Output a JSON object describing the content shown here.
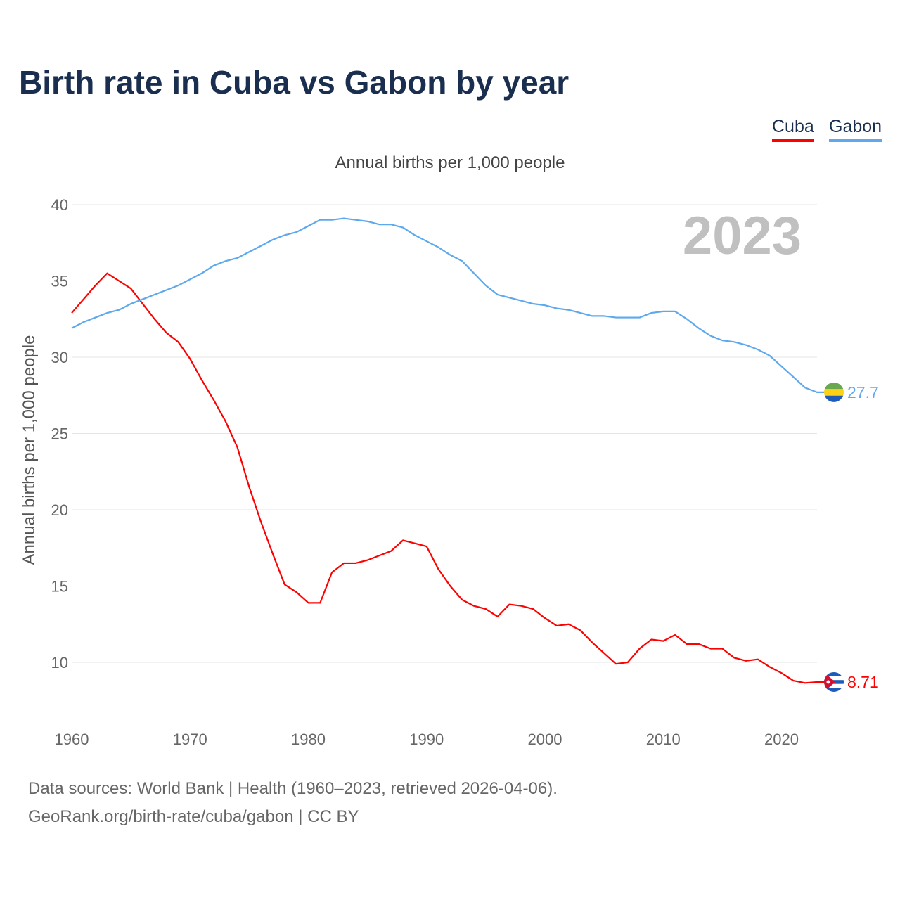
{
  "chart_data": {
    "type": "line",
    "title": "Birth rate in Cuba vs Gabon by year",
    "subtitle": "Annual births per 1,000 people",
    "ylabel": "Annual births per 1,000 people",
    "xlabel": "",
    "year_label": "2023",
    "xlim": [
      1960,
      2023
    ],
    "ylim": [
      7,
      40
    ],
    "yticks": [
      10,
      15,
      20,
      25,
      30,
      35,
      40
    ],
    "xticks": [
      1960,
      1970,
      1980,
      1990,
      2000,
      2010,
      2020
    ],
    "grid": true,
    "legend_position": "top-right",
    "x": [
      1960,
      1961,
      1962,
      1963,
      1964,
      1965,
      1966,
      1967,
      1968,
      1969,
      1970,
      1971,
      1972,
      1973,
      1974,
      1975,
      1976,
      1977,
      1978,
      1979,
      1980,
      1981,
      1982,
      1983,
      1984,
      1985,
      1986,
      1987,
      1988,
      1989,
      1990,
      1991,
      1992,
      1993,
      1994,
      1995,
      1996,
      1997,
      1998,
      1999,
      2000,
      2001,
      2002,
      2003,
      2004,
      2005,
      2006,
      2007,
      2008,
      2009,
      2010,
      2011,
      2012,
      2013,
      2014,
      2015,
      2016,
      2017,
      2018,
      2019,
      2020,
      2021,
      2022,
      2023
    ],
    "series": [
      {
        "name": "Cuba",
        "color": "#ff0000",
        "end_label": "8.71",
        "values": [
          32.9,
          33.8,
          34.7,
          35.5,
          35.0,
          34.5,
          33.5,
          32.5,
          31.6,
          31.0,
          29.9,
          28.5,
          27.2,
          25.8,
          24.1,
          21.5,
          19.2,
          17.1,
          15.1,
          14.6,
          13.9,
          13.9,
          15.9,
          16.5,
          16.5,
          16.7,
          17.0,
          17.3,
          18.0,
          17.8,
          17.6,
          16.1,
          15.0,
          14.1,
          13.7,
          13.5,
          13.0,
          13.8,
          13.7,
          13.5,
          12.9,
          12.4,
          12.5,
          12.1,
          11.3,
          10.6,
          9.9,
          10.0,
          10.9,
          11.5,
          11.4,
          11.8,
          11.2,
          11.2,
          10.9,
          10.9,
          10.3,
          10.1,
          10.2,
          9.7,
          9.3,
          8.8,
          8.65,
          8.71
        ]
      },
      {
        "name": "Gabon",
        "color": "#5ea8ee",
        "end_label": "27.7",
        "values": [
          31.9,
          32.3,
          32.6,
          32.9,
          33.1,
          33.5,
          33.8,
          34.1,
          34.4,
          34.7,
          35.1,
          35.5,
          36.0,
          36.3,
          36.5,
          36.9,
          37.3,
          37.7,
          38.0,
          38.2,
          38.6,
          39.0,
          39.0,
          39.1,
          39.0,
          38.9,
          38.7,
          38.7,
          38.5,
          38.0,
          37.6,
          37.2,
          36.7,
          36.3,
          35.5,
          34.7,
          34.1,
          33.9,
          33.7,
          33.5,
          33.4,
          33.2,
          33.1,
          32.9,
          32.7,
          32.7,
          32.6,
          32.6,
          32.6,
          32.9,
          33.0,
          33.0,
          32.5,
          31.9,
          31.4,
          31.1,
          31.0,
          30.8,
          30.5,
          30.1,
          29.4,
          28.7,
          28.0,
          27.7
        ]
      }
    ]
  },
  "footer": {
    "line1": "Data sources: World Bank | Health (1960–2023, retrieved 2026-04-06).",
    "line2": "GeoRank.org/birth-rate/cuba/gabon | CC BY"
  }
}
